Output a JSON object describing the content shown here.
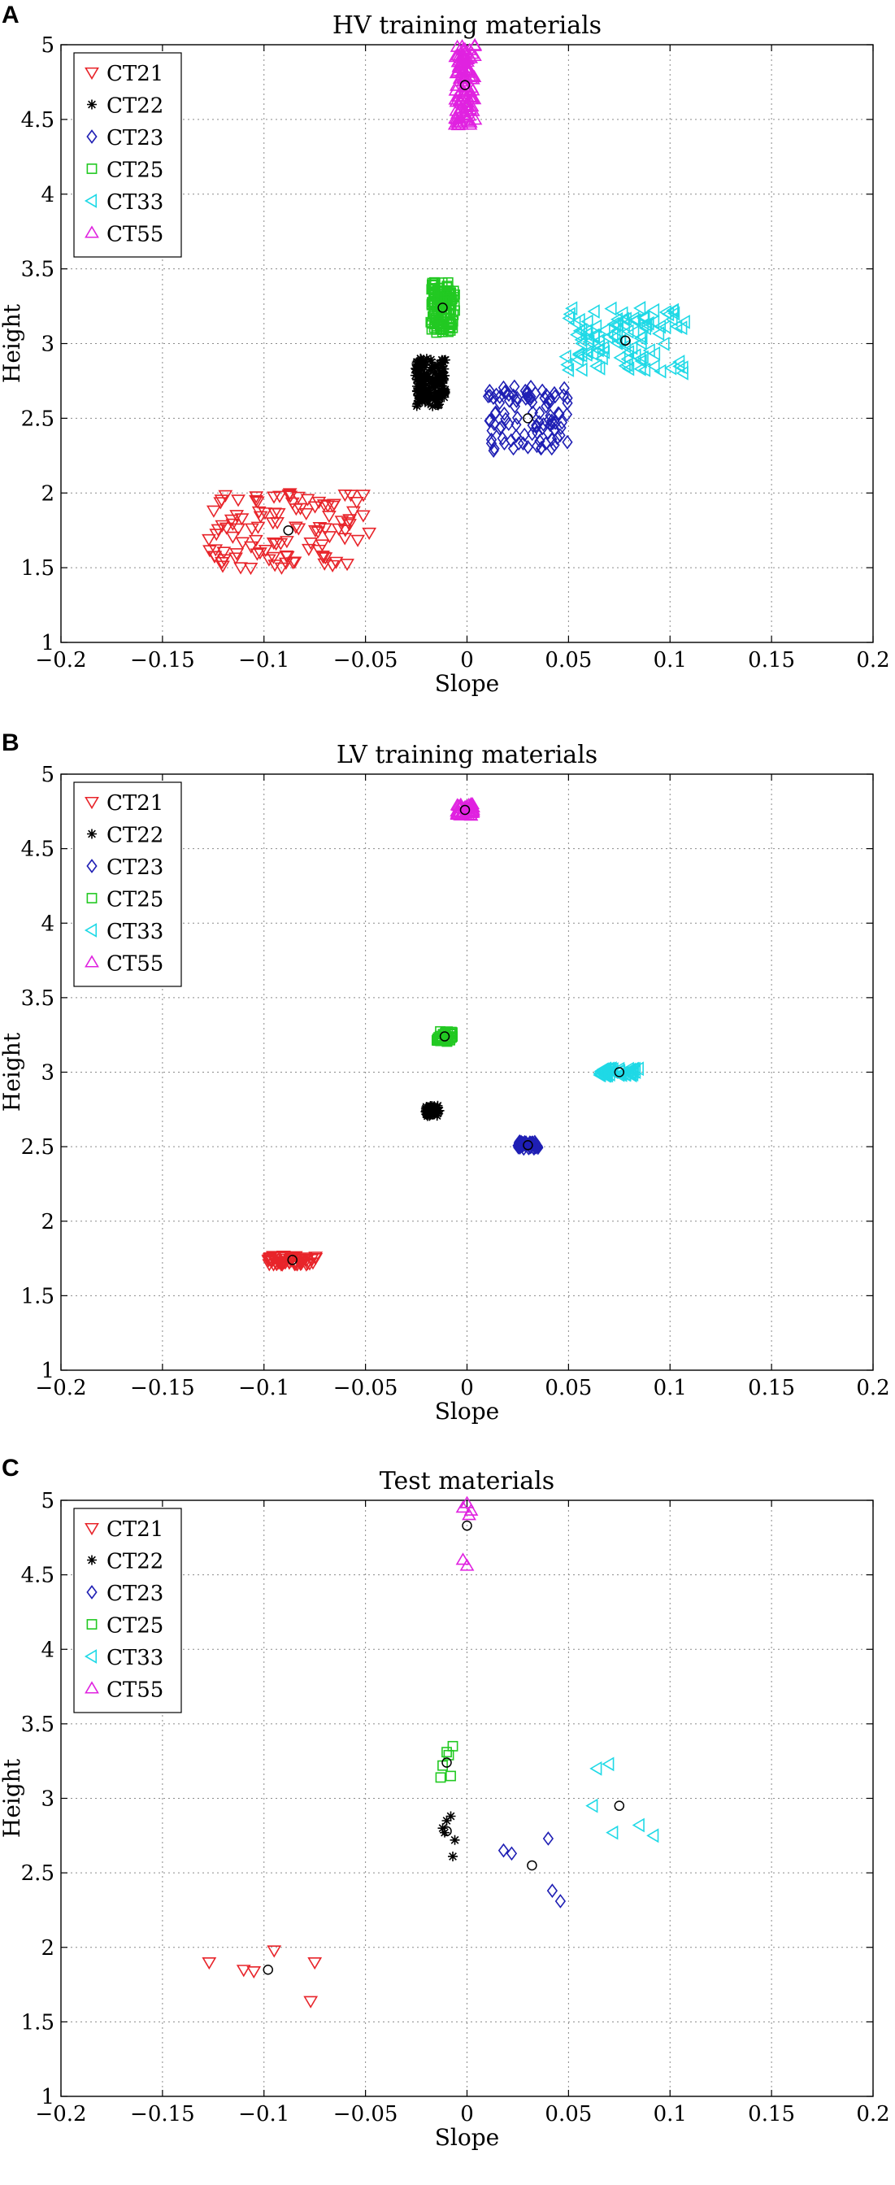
{
  "figure": {
    "panel_labels": [
      "A",
      "B",
      "C"
    ]
  },
  "chart_data": [
    {
      "type": "scatter",
      "panel": "A",
      "title": "HV training materials",
      "xlabel": "Slope",
      "ylabel": "Height",
      "xlim": [
        -0.2,
        0.2
      ],
      "ylim": [
        1,
        5
      ],
      "xticks": [
        -0.2,
        -0.15,
        -0.1,
        -0.05,
        0,
        0.05,
        0.1,
        0.15,
        0.2
      ],
      "xtick_labels": [
        "−0.2",
        "−0.15",
        "−0.1",
        "−0.05",
        "0",
        "0.05",
        "0.1",
        "0.15",
        "0.2"
      ],
      "yticks": [
        1,
        1.5,
        2,
        2.5,
        3,
        3.5,
        4,
        4.5,
        5
      ],
      "ytick_labels": [
        "1",
        "1.5",
        "2",
        "2.5",
        "3",
        "3.5",
        "4",
        "4.5",
        "5"
      ],
      "grid": true,
      "legend_position": "top-left",
      "series": [
        {
          "name": "CT21",
          "marker": "triangle-down",
          "color": "#e8242a",
          "cluster": {
            "cx": -0.088,
            "cy": 1.75,
            "sx": 0.04,
            "sy": 0.25,
            "n": 110
          },
          "centroid": [
            -0.088,
            1.75
          ]
        },
        {
          "name": "CT22",
          "marker": "star",
          "color": "#000000",
          "cluster": {
            "cx": -0.018,
            "cy": 2.74,
            "sx": 0.0075,
            "sy": 0.16,
            "n": 140
          },
          "centroid": [
            -0.018,
            2.74
          ]
        },
        {
          "name": "CT23",
          "marker": "diamond",
          "color": "#1f1fb4",
          "cluster": {
            "cx": 0.03,
            "cy": 2.5,
            "sx": 0.02,
            "sy": 0.22,
            "n": 100
          },
          "centroid": [
            0.03,
            2.5
          ]
        },
        {
          "name": "CT25",
          "marker": "square",
          "color": "#22c922",
          "cluster": {
            "cx": -0.012,
            "cy": 3.24,
            "sx": 0.006,
            "sy": 0.17,
            "n": 120
          },
          "centroid": [
            -0.012,
            3.24
          ]
        },
        {
          "name": "CT33",
          "marker": "triangle-left",
          "color": "#1fd9e6",
          "cluster": {
            "cx": 0.078,
            "cy": 3.02,
            "sx": 0.03,
            "sy": 0.22,
            "n": 110
          },
          "centroid": [
            0.078,
            3.02
          ]
        },
        {
          "name": "CT55",
          "marker": "triangle-up",
          "color": "#e022e0",
          "cluster": {
            "cx": -0.001,
            "cy": 4.73,
            "sx": 0.005,
            "sy": 0.27,
            "n": 110
          },
          "centroid": [
            -0.001,
            4.73
          ]
        }
      ]
    },
    {
      "type": "scatter",
      "panel": "B",
      "title": "LV training materials",
      "xlabel": "Slope",
      "ylabel": "Height",
      "xlim": [
        -0.2,
        0.2
      ],
      "ylim": [
        1,
        5
      ],
      "xticks": [
        -0.2,
        -0.15,
        -0.1,
        -0.05,
        0,
        0.05,
        0.1,
        0.15,
        0.2
      ],
      "xtick_labels": [
        "−0.2",
        "−0.15",
        "−0.1",
        "−0.05",
        "0",
        "0.05",
        "0.1",
        "0.15",
        "0.2"
      ],
      "yticks": [
        1,
        1.5,
        2,
        2.5,
        3,
        3.5,
        4,
        4.5,
        5
      ],
      "ytick_labels": [
        "1",
        "1.5",
        "2",
        "2.5",
        "3",
        "3.5",
        "4",
        "4.5",
        "5"
      ],
      "grid": true,
      "legend_position": "top-left",
      "series": [
        {
          "name": "CT21",
          "marker": "triangle-down",
          "color": "#e8242a",
          "cluster": {
            "cx": -0.086,
            "cy": 1.74,
            "sx": 0.012,
            "sy": 0.03,
            "n": 60
          },
          "centroid": [
            -0.086,
            1.74
          ]
        },
        {
          "name": "CT22",
          "marker": "star",
          "color": "#000000",
          "cluster": {
            "cx": -0.017,
            "cy": 2.74,
            "sx": 0.0035,
            "sy": 0.035,
            "n": 50
          },
          "centroid": [
            -0.017,
            2.74
          ]
        },
        {
          "name": "CT23",
          "marker": "diamond",
          "color": "#1f1fb4",
          "cluster": {
            "cx": 0.03,
            "cy": 2.51,
            "sx": 0.005,
            "sy": 0.025,
            "n": 50
          },
          "centroid": [
            0.03,
            2.51
          ]
        },
        {
          "name": "CT25",
          "marker": "square",
          "color": "#22c922",
          "cluster": {
            "cx": -0.011,
            "cy": 3.24,
            "sx": 0.004,
            "sy": 0.035,
            "n": 40
          },
          "centroid": [
            -0.011,
            3.24
          ]
        },
        {
          "name": "CT33",
          "marker": "triangle-left",
          "color": "#1fd9e6",
          "cluster": {
            "cx": 0.075,
            "cy": 3.0,
            "sx": 0.01,
            "sy": 0.025,
            "n": 50
          },
          "centroid": [
            0.075,
            3.0
          ]
        },
        {
          "name": "CT55",
          "marker": "triangle-up",
          "color": "#e022e0",
          "cluster": {
            "cx": -0.001,
            "cy": 4.76,
            "sx": 0.004,
            "sy": 0.04,
            "n": 40
          },
          "centroid": [
            -0.001,
            4.76
          ]
        }
      ]
    },
    {
      "type": "scatter",
      "panel": "C",
      "title": "Test materials",
      "xlabel": "Slope",
      "ylabel": "Height",
      "xlim": [
        -0.2,
        0.2
      ],
      "ylim": [
        1,
        5
      ],
      "xticks": [
        -0.2,
        -0.15,
        -0.1,
        -0.05,
        0,
        0.05,
        0.1,
        0.15,
        0.2
      ],
      "xtick_labels": [
        "−0.2",
        "−0.15",
        "−0.1",
        "−0.05",
        "0",
        "0.05",
        "0.1",
        "0.15",
        "0.2"
      ],
      "yticks": [
        1,
        1.5,
        2,
        2.5,
        3,
        3.5,
        4,
        4.5,
        5
      ],
      "ytick_labels": [
        "1",
        "1.5",
        "2",
        "2.5",
        "3",
        "3.5",
        "4",
        "4.5",
        "5"
      ],
      "grid": true,
      "legend_position": "top-left",
      "series": [
        {
          "name": "CT21",
          "marker": "triangle-down",
          "color": "#e8242a",
          "points": [
            [
              -0.127,
              1.9
            ],
            [
              -0.11,
              1.85
            ],
            [
              -0.105,
              1.84
            ],
            [
              -0.095,
              1.98
            ],
            [
              -0.075,
              1.9
            ],
            [
              -0.077,
              1.64
            ]
          ],
          "centroid": [
            -0.098,
            1.85
          ]
        },
        {
          "name": "CT22",
          "marker": "star",
          "color": "#000000",
          "points": [
            [
              -0.012,
              2.8
            ],
            [
              -0.01,
              2.85
            ],
            [
              -0.008,
              2.88
            ],
            [
              -0.011,
              2.77
            ],
            [
              -0.006,
              2.72
            ],
            [
              -0.007,
              2.61
            ]
          ],
          "centroid": [
            -0.01,
            2.78
          ]
        },
        {
          "name": "CT23",
          "marker": "diamond",
          "color": "#1f1fb4",
          "points": [
            [
              0.018,
              2.65
            ],
            [
              0.022,
              2.63
            ],
            [
              0.04,
              2.73
            ],
            [
              0.042,
              2.38
            ],
            [
              0.046,
              2.31
            ]
          ],
          "centroid": [
            0.032,
            2.55
          ]
        },
        {
          "name": "CT25",
          "marker": "square",
          "color": "#22c922",
          "points": [
            [
              -0.012,
              3.22
            ],
            [
              -0.013,
              3.14
            ],
            [
              -0.009,
              3.29
            ],
            [
              -0.007,
              3.35
            ],
            [
              -0.008,
              3.15
            ],
            [
              -0.01,
              3.31
            ]
          ],
          "centroid": [
            -0.01,
            3.24
          ]
        },
        {
          "name": "CT33",
          "marker": "triangle-left",
          "color": "#1fd9e6",
          "points": [
            [
              0.064,
              3.2
            ],
            [
              0.07,
              3.23
            ],
            [
              0.062,
              2.95
            ],
            [
              0.072,
              2.77
            ],
            [
              0.085,
              2.82
            ],
            [
              0.092,
              2.75
            ]
          ],
          "centroid": [
            0.075,
            2.95
          ]
        },
        {
          "name": "CT55",
          "marker": "triangle-up",
          "color": "#e022e0",
          "points": [
            [
              -0.002,
              4.95
            ],
            [
              0.0,
              4.98
            ],
            [
              0.001,
              4.9
            ],
            [
              -0.002,
              4.6
            ],
            [
              0.0,
              4.56
            ],
            [
              0.002,
              4.93
            ]
          ],
          "centroid": [
            0.0,
            4.83
          ]
        }
      ]
    }
  ]
}
